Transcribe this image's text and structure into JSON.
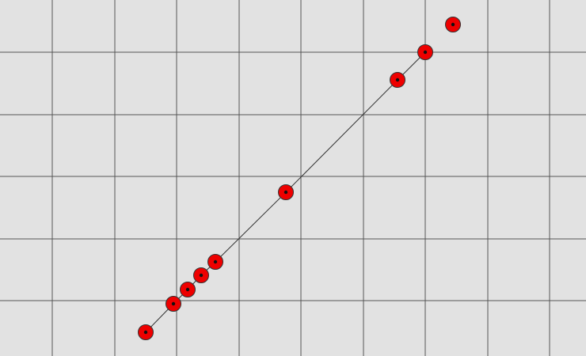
{
  "canvas": {
    "background_color": "#e2e2e2",
    "grid_color": "#555555",
    "line_color": "#333333",
    "point_fill_color": "#ee0000",
    "point_center_color": "#111111",
    "grid_visible": true
  },
  "points": [
    {
      "id": "p1",
      "connected": true
    },
    {
      "id": "p2",
      "connected": true
    },
    {
      "id": "p3",
      "connected": true
    },
    {
      "id": "p4",
      "connected": true
    },
    {
      "id": "p5",
      "connected": true
    },
    {
      "id": "p6",
      "connected": true
    },
    {
      "id": "p7",
      "connected": true
    },
    {
      "id": "p8",
      "connected": true
    },
    {
      "id": "p9",
      "connected": false
    }
  ]
}
